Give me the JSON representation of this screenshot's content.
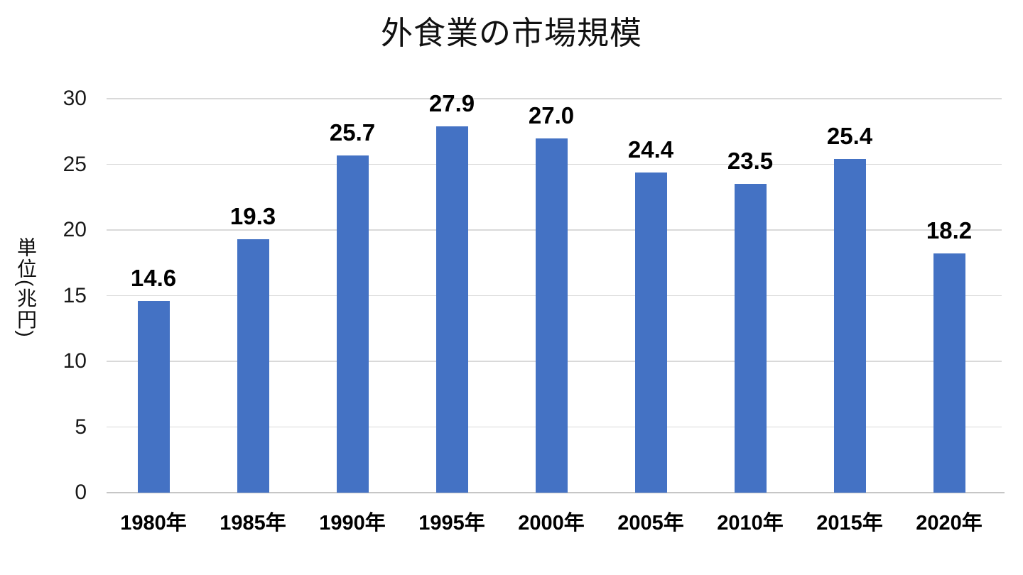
{
  "chart_data": {
    "type": "bar",
    "title": "外食業の市場規模",
    "ylabel": "単位(兆円)",
    "xlabel": "",
    "categories": [
      "1980年",
      "1985年",
      "1990年",
      "1995年",
      "2000年",
      "2005年",
      "2010年",
      "2015年",
      "2020年"
    ],
    "values": [
      14.6,
      19.3,
      25.7,
      27.9,
      27.0,
      24.4,
      23.5,
      25.4,
      18.2
    ],
    "data_labels": [
      "14.6",
      "19.3",
      "25.7",
      "27.9",
      "27.0",
      "24.4",
      "23.5",
      "25.4",
      "18.2"
    ],
    "yticks": [
      0,
      5,
      10,
      15,
      20,
      25,
      30
    ],
    "ylim": [
      0,
      30
    ],
    "grid": true,
    "legend": "none",
    "bar_color": "#4472C4",
    "gridline_color": "#D9D9D9",
    "axis_line_color": "#C6C6C6",
    "text_color": "#111111"
  }
}
